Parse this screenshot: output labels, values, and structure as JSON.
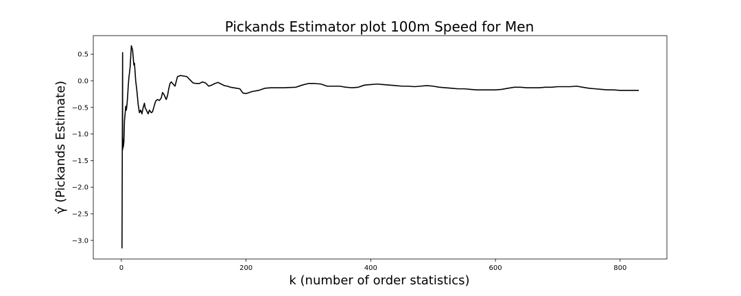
{
  "chart_data": {
    "type": "line",
    "title": "Pickands Estimator plot 100m Speed for Men",
    "xlabel": "k (number of order statistics)",
    "ylabel": "γ̂ (Pickands Estimate)",
    "xlim": [
      -45,
      875
    ],
    "ylim": [
      -3.35,
      0.85
    ],
    "x_ticks": [
      0,
      200,
      400,
      600,
      800
    ],
    "y_ticks": [
      -3.0,
      -2.5,
      -2.0,
      -1.5,
      -1.0,
      -0.5,
      0.0,
      0.5
    ],
    "x_tick_labels": [
      "0",
      "200",
      "400",
      "600",
      "800"
    ],
    "y_tick_labels": [
      "−3.0",
      "−2.5",
      "−2.0",
      "−1.5",
      "−1.0",
      "−0.5",
      "0.0",
      "0.5"
    ],
    "grid": false,
    "line_color": "#000000",
    "series": [
      {
        "x": [
          1,
          2,
          2,
          3,
          3,
          4,
          5,
          6,
          7,
          8,
          9,
          10,
          11,
          12,
          14,
          16,
          18,
          20,
          21,
          23,
          25,
          27,
          29,
          31,
          33,
          35,
          37,
          38,
          40,
          43,
          45,
          48,
          50,
          52,
          55,
          58,
          61,
          64,
          66,
          68,
          70,
          72,
          74,
          76,
          78,
          80,
          83,
          86,
          90,
          95,
          100,
          105,
          110,
          115,
          120,
          125,
          130,
          135,
          140,
          145,
          150,
          155,
          160,
          165,
          170,
          175,
          180,
          185,
          190,
          195,
          200,
          210,
          220,
          230,
          240,
          260,
          280,
          290,
          300,
          310,
          320,
          330,
          340,
          350,
          360,
          370,
          380,
          390,
          400,
          410,
          420,
          430,
          440,
          450,
          460,
          470,
          480,
          490,
          500,
          510,
          520,
          530,
          540,
          550,
          560,
          570,
          580,
          590,
          600,
          610,
          620,
          630,
          640,
          650,
          660,
          670,
          680,
          690,
          700,
          710,
          720,
          730,
          740,
          750,
          760,
          770,
          780,
          790,
          800,
          810,
          820,
          830
        ],
        "y": [
          -3.15,
          0.53,
          -1.3,
          -1.1,
          -1.25,
          -1.15,
          -0.75,
          -0.62,
          -0.48,
          -0.55,
          -0.45,
          -0.3,
          -0.1,
          0.05,
          0.25,
          0.66,
          0.58,
          0.3,
          0.33,
          0.0,
          -0.2,
          -0.45,
          -0.6,
          -0.55,
          -0.62,
          -0.5,
          -0.42,
          -0.5,
          -0.55,
          -0.62,
          -0.55,
          -0.6,
          -0.58,
          -0.5,
          -0.38,
          -0.35,
          -0.37,
          -0.32,
          -0.22,
          -0.25,
          -0.3,
          -0.35,
          -0.28,
          -0.15,
          -0.05,
          -0.02,
          -0.06,
          -0.1,
          0.08,
          0.1,
          0.09,
          0.08,
          0.02,
          -0.04,
          -0.05,
          -0.05,
          -0.02,
          -0.04,
          -0.1,
          -0.08,
          -0.05,
          -0.03,
          -0.06,
          -0.09,
          -0.1,
          -0.12,
          -0.13,
          -0.14,
          -0.15,
          -0.23,
          -0.24,
          -0.2,
          -0.18,
          -0.14,
          -0.13,
          -0.13,
          -0.12,
          -0.08,
          -0.05,
          -0.05,
          -0.06,
          -0.1,
          -0.1,
          -0.1,
          -0.12,
          -0.13,
          -0.12,
          -0.08,
          -0.07,
          -0.06,
          -0.07,
          -0.08,
          -0.09,
          -0.1,
          -0.1,
          -0.11,
          -0.1,
          -0.09,
          -0.1,
          -0.12,
          -0.13,
          -0.14,
          -0.15,
          -0.15,
          -0.16,
          -0.17,
          -0.17,
          -0.17,
          -0.17,
          -0.16,
          -0.14,
          -0.12,
          -0.12,
          -0.13,
          -0.13,
          -0.13,
          -0.12,
          -0.12,
          -0.11,
          -0.11,
          -0.11,
          -0.1,
          -0.12,
          -0.14,
          -0.15,
          -0.16,
          -0.17,
          -0.17,
          -0.18,
          -0.18,
          -0.18,
          -0.18
        ]
      }
    ]
  }
}
